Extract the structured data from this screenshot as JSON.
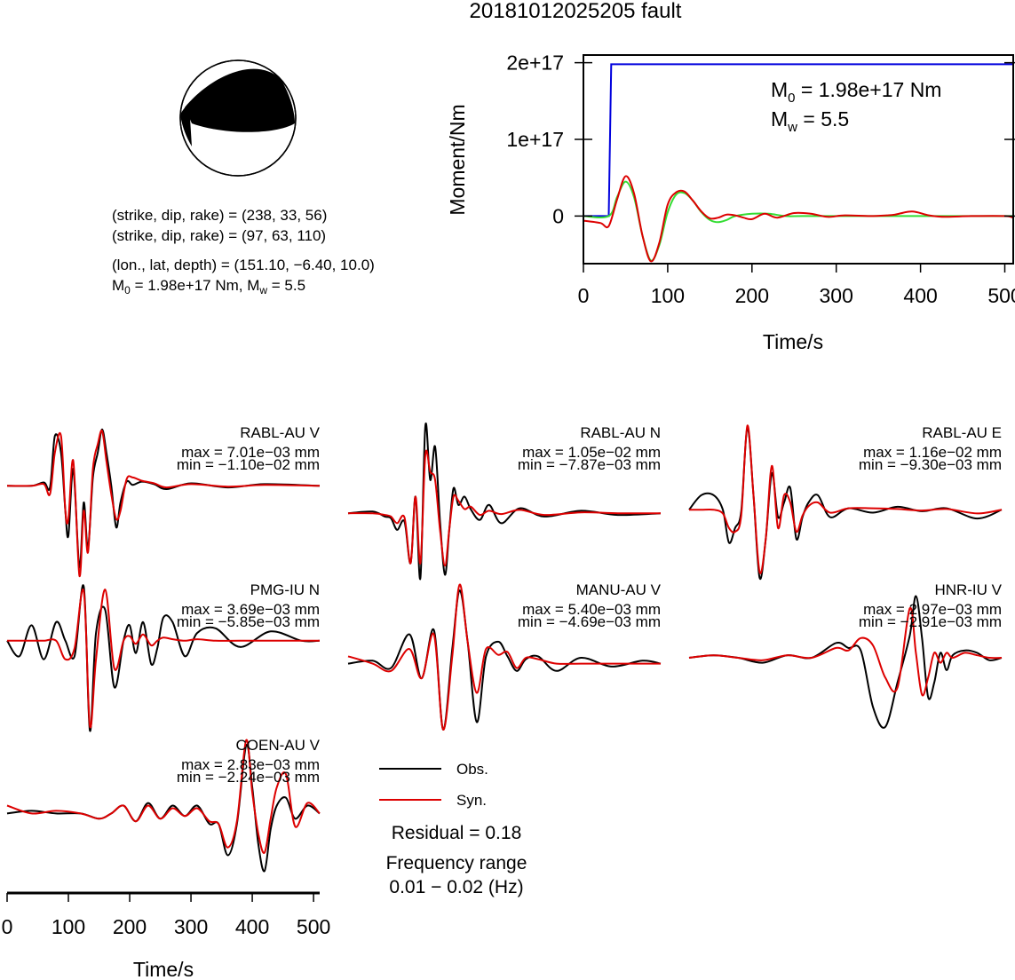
{
  "title": "20181012025205 fault",
  "mechanism": {
    "plane1": "(strike, dip, rake) = (238, 33, 56)",
    "plane2": "(strike, dip, rake) = (97, 63, 110)",
    "location": "(lon., lat, depth) = (151.10, −6.40, 10.0)",
    "moment_line": "M0 = 1.98e+17 Nm, Mw = 5.5",
    "strike1": 238,
    "dip1": 33,
    "rake1": 56,
    "strike2": 97,
    "dip2": 63,
    "rake2": 110,
    "lon": 151.1,
    "lat": -6.4,
    "depth": 10.0
  },
  "legend": {
    "obs_label": "Obs.",
    "syn_label": "Syn.",
    "residual": "Residual = 0.18",
    "freq_title": "Frequency range",
    "freq_value": "0.01 − 0.02 (Hz)"
  },
  "colors": {
    "cumulative_moment": "#0000dd",
    "moment_rate_green": "#33dd33",
    "moment_rate_red": "#dd0000",
    "observed": "#000000",
    "synthetic": "#dd0000",
    "beachball_fill": "#000000"
  },
  "chart_data": [
    {
      "type": "line",
      "name": "moment",
      "xlabel": "Time/s",
      "ylabel": "Moment/Nm",
      "xlim": [
        0,
        510
      ],
      "ylim": [
        -6.2e+16,
        2.1e+17
      ],
      "xticks": [
        0,
        100,
        200,
        300,
        400,
        500
      ],
      "yticks": [
        0,
        1e+17,
        2e+17
      ],
      "ytick_labels": [
        "0",
        "1e+17",
        "2e+17"
      ],
      "annotation": {
        "M0": "M0 = 1.98e+17 Nm",
        "Mw": "Mw = 5.5"
      },
      "series": [
        {
          "color": "blue",
          "x": [
            0,
            30,
            33,
            510
          ],
          "y": [
            0,
            0,
            1.98e+17,
            1.98e+17
          ]
        },
        {
          "color": "green",
          "x": [
            0,
            30,
            40,
            50,
            60,
            70,
            80,
            90,
            100,
            110,
            120,
            130,
            140,
            150,
            160,
            170,
            180,
            200,
            220,
            240,
            260,
            300,
            400,
            510
          ],
          "y": [
            0,
            0,
            2.5e+16,
            4.5e+16,
            2.5e+16,
            -2.5e+16,
            -5.8e+16,
            -3.8e+16,
            5000000000000000.0,
            2.8e+16,
            3e+16,
            2e+16,
            5000000000000000.0,
            -5000000000000000.0,
            -8000000000000000.0,
            -5000000000000000.0,
            0,
            3000000000000000.0,
            3000000000000000.0,
            0,
            0,
            0,
            0,
            0
          ]
        },
        {
          "color": "red",
          "x": [
            0,
            20,
            30,
            40,
            50,
            60,
            70,
            80,
            90,
            100,
            110,
            120,
            130,
            140,
            150,
            160,
            170,
            180,
            190,
            200,
            215,
            230,
            250,
            270,
            290,
            310,
            340,
            360,
            370,
            390,
            410,
            430,
            460,
            500,
            510
          ],
          "y": [
            -6000000000000000.0,
            -9000000000000000.0,
            -1.3e+16,
            2.2e+16,
            5.2e+16,
            3e+16,
            -2.5e+16,
            -5.9e+16,
            -3.5e+16,
            1.5e+16,
            3.1e+16,
            3.2e+16,
            2e+16,
            6000000000000000.0,
            -3000000000000000.0,
            -2000000000000000.0,
            2000000000000000.0,
            1000000000000000.0,
            -2000000000000000.0,
            -4000000000000000.0,
            3000000000000000.0,
            -2000000000000000.0,
            4000000000000000.0,
            3000000000000000.0,
            -1000000000000000.0,
            1000000000000000.0,
            0,
            1000000000000000.0,
            2000000000000000.0,
            6000000000000000.0,
            1000000000000000.0,
            -1000000000000000.0,
            0,
            0,
            -2000000000000000.0
          ]
        }
      ]
    },
    {
      "type": "line",
      "name": "RABL-AU V",
      "max": "max = 7.01e−03 mm",
      "min": "min = −1.10e−02 mm",
      "ylim": [
        -0.0115,
        0.0075
      ],
      "x": [
        0,
        40,
        60,
        70,
        78,
        88,
        95,
        100,
        108,
        118,
        125,
        132,
        140,
        148,
        155,
        162,
        170,
        178,
        185,
        195,
        205,
        220,
        240,
        260,
        300,
        360,
        420,
        510
      ],
      "obs": [
        0,
        0,
        0.0004,
        -0.0002,
        0.006,
        0.004,
        -0.003,
        -0.006,
        0.002,
        -0.0098,
        -0.002,
        -0.0075,
        0.001,
        0.004,
        0.0068,
        0.004,
        0,
        -0.005,
        -0.002,
        0.0005,
        0.0001,
        0.0005,
        0.0002,
        -0.0004,
        0.0003,
        -0.0002,
        0.0002,
        0
      ],
      "syn": [
        0,
        0,
        0.0002,
        -0.001,
        0.004,
        0.006,
        -0.003,
        -0.004,
        0.003,
        -0.0108,
        -0.003,
        -0.008,
        0.002,
        0.005,
        0.0066,
        0.003,
        -0.001,
        -0.004,
        -0.003,
        0.0008,
        0.001,
        0.0006,
        0.0003,
        -0.0002,
        0.0002,
        -0.0001,
        0.0001,
        0
      ]
    },
    {
      "type": "line",
      "name": "RABL-AU N",
      "max": "max = 1.05e−02 mm",
      "min": "min = −7.87e−03 mm",
      "ylim": [
        -0.0082,
        0.0108
      ],
      "x": [
        0,
        40,
        60,
        70,
        80,
        92,
        102,
        110,
        118,
        126,
        134,
        142,
        150,
        158,
        165,
        172,
        180,
        190,
        200,
        215,
        230,
        250,
        280,
        320,
        380,
        440,
        510
      ],
      "obs": [
        0,
        0.0002,
        -0.0004,
        -0.0006,
        -0.002,
        -0.001,
        -0.006,
        0.002,
        -0.0078,
        0.0105,
        0.004,
        0.008,
        -0.001,
        -0.0074,
        -0.002,
        0.003,
        0.001,
        0.002,
        0.0005,
        -0.0008,
        0.001,
        -0.0012,
        0.0006,
        -0.0004,
        0.0003,
        -0.0002,
        0
      ],
      "syn": [
        0,
        0,
        -0.0002,
        -0.0004,
        -0.0012,
        -0.0005,
        -0.006,
        0.002,
        -0.006,
        0.007,
        0.005,
        0.004,
        -0.002,
        -0.0063,
        -0.002,
        0.002,
        0.0015,
        0.0005,
        0.0008,
        -0.0002,
        0.0003,
        -0.0001,
        0.0004,
        -0.0002,
        0.0001,
        0,
        0
      ]
    },
    {
      "type": "line",
      "name": "RABL-AU E",
      "max": "max = 1.16e−02 mm",
      "min": "min = −9.30e−03 mm",
      "ylim": [
        -0.0098,
        0.0118
      ],
      "x": [
        0,
        20,
        40,
        55,
        65,
        75,
        85,
        95,
        105,
        115,
        125,
        135,
        145,
        155,
        165,
        175,
        185,
        195,
        210,
        230,
        260,
        300,
        340,
        380,
        420,
        470,
        510
      ],
      "obs": [
        0,
        0.002,
        0.002,
        0,
        -0.0045,
        -0.0025,
        -0.0002,
        0.0112,
        0.002,
        -0.0093,
        -0.004,
        0.005,
        -0.001,
        0.001,
        0.003,
        -0.004,
        -0.001,
        0.001,
        0.002,
        -0.001,
        0.0002,
        -0.0004,
        0.0004,
        -0.0002,
        0.0002,
        -0.0012,
        0
      ],
      "syn": [
        0,
        0,
        0,
        -0.0005,
        -0.0025,
        -0.003,
        -0.0008,
        0.0115,
        0.002,
        -0.0085,
        -0.004,
        0.006,
        -0.0025,
        0.002,
        0.001,
        -0.003,
        -0.0008,
        0.0005,
        0.001,
        -0.0004,
        0.0002,
        0.0002,
        0.0001,
        -0.0001,
        0.0001,
        -0.0005,
        0
      ]
    },
    {
      "type": "line",
      "name": "PMG-IU N",
      "max": "max = 3.69e−03 mm",
      "min": "min = −5.85e−03 mm",
      "ylim": [
        -0.0062,
        0.004
      ],
      "x": [
        0,
        20,
        40,
        60,
        80,
        95,
        110,
        125,
        135,
        145,
        160,
        175,
        190,
        200,
        210,
        222,
        235,
        245,
        255,
        270,
        290,
        310,
        340,
        380,
        430,
        480,
        510
      ],
      "obs": [
        0,
        -0.001,
        0.001,
        -0.0012,
        0.0012,
        0,
        -0.001,
        0.0035,
        -0.0058,
        0.0005,
        0.002,
        -0.003,
        0,
        0.001,
        -0.0008,
        0.0012,
        -0.0015,
        -0.0005,
        0.0015,
        0.0012,
        -0.001,
        0.0005,
        0.0008,
        -0.0004,
        0.0006,
        0,
        0
      ],
      "syn": [
        0,
        0,
        0,
        0,
        0,
        -0.0012,
        -0.0005,
        0.0032,
        -0.0055,
        -0.0012,
        0.0033,
        -0.0018,
        0,
        0.0003,
        -0.0002,
        0.0004,
        -0.0003,
        0,
        0.0002,
        0.0001,
        0,
        0.0001,
        0,
        0,
        0,
        0,
        0
      ]
    },
    {
      "type": "line",
      "name": "MANU-AU V",
      "max": "max = 5.40e−03 mm",
      "min": "min = −4.69e−03 mm",
      "ylim": [
        -0.005,
        0.0058
      ],
      "x": [
        0,
        40,
        70,
        100,
        120,
        140,
        155,
        170,
        182,
        195,
        210,
        225,
        245,
        260,
        275,
        290,
        310,
        340,
        380,
        430,
        480,
        510
      ],
      "obs": [
        0,
        0.0002,
        -0.0003,
        0.002,
        -0.001,
        0.0023,
        -0.0045,
        0.001,
        0.005,
        0.0015,
        -0.004,
        0.0005,
        0.0015,
        0.0005,
        -0.0005,
        0.0003,
        0.0005,
        -0.0005,
        0.0004,
        -0.0002,
        0.0002,
        0
      ],
      "syn": [
        0.0005,
        0,
        -0.0005,
        0.001,
        -0.001,
        0.002,
        -0.0045,
        0.0005,
        0.0054,
        0.0015,
        -0.002,
        0.001,
        0.0006,
        0.0008,
        -0.0003,
        0.0004,
        0.0003,
        0,
        0,
        0,
        0,
        0
      ]
    },
    {
      "type": "line",
      "name": "HNR-IU V",
      "max": "max = 2.97e−03 mm",
      "min": "min = −2.91e−03 mm",
      "ylim": [
        -0.0032,
        0.0032
      ],
      "x": [
        0,
        40,
        80,
        120,
        160,
        200,
        240,
        260,
        280,
        300,
        320,
        340,
        360,
        370,
        380,
        390,
        400,
        410,
        420,
        430,
        450,
        470,
        490,
        510
      ],
      "obs": [
        0,
        0.0001,
        0,
        -0.0002,
        0.0001,
        0,
        0.0006,
        0.0004,
        0.0003,
        -0.002,
        -0.0028,
        -0.001,
        0.0009,
        0.0025,
        0.0008,
        -0.0016,
        -0.001,
        0.0002,
        -0.0005,
        0.0001,
        0.0003,
        0.0002,
        -0.0001,
        0
      ],
      "syn": [
        0,
        0.0001,
        0,
        -0.0001,
        0.0001,
        0,
        0.0004,
        0.0003,
        0.0008,
        0.0005,
        -0.0008,
        -0.0012,
        0.002,
        0.0002,
        -0.0015,
        -0.0008,
        0.0002,
        -0.0002,
        0.0002,
        0,
        0.0002,
        0.0001,
        0,
        0
      ]
    },
    {
      "type": "line",
      "name": "COEN-AU V",
      "max": "max = 2.83e−03 mm",
      "min": "min = −2.24e−03 mm",
      "ylim": [
        -0.0025,
        0.003
      ],
      "x": [
        0,
        40,
        80,
        120,
        150,
        170,
        190,
        210,
        230,
        250,
        270,
        290,
        310,
        330,
        345,
        360,
        375,
        390,
        400,
        410,
        420,
        430,
        440,
        455,
        470,
        490,
        510
      ],
      "obs": [
        0,
        0.0001,
        0,
        0,
        -0.0002,
        0,
        0.0003,
        -0.0003,
        0.0004,
        -0.0002,
        0.0003,
        -0.0001,
        0.0003,
        -0.0004,
        -0.0004,
        -0.0016,
        -0.0004,
        0.0026,
        0.001,
        -0.0012,
        -0.0022,
        -0.0006,
        0.0003,
        0.0006,
        -0.0002,
        0.0003,
        0
      ],
      "syn": [
        0.0003,
        0,
        0.0001,
        0,
        -0.0002,
        0,
        0.0003,
        -0.0003,
        0.0003,
        -0.0002,
        0.0002,
        -0.0001,
        0.0002,
        -0.0003,
        -0.0004,
        -0.0013,
        -0.0003,
        0.0028,
        0.0008,
        -0.0008,
        -0.0015,
        -0.0002,
        0.001,
        0.0015,
        -0.0005,
        0.0004,
        0
      ]
    },
    {
      "type": "axis",
      "name": "time-axis",
      "xlabel": "Time/s",
      "xlim": [
        0,
        510
      ],
      "xticks": [
        0,
        100,
        200,
        300,
        400,
        500
      ]
    }
  ]
}
